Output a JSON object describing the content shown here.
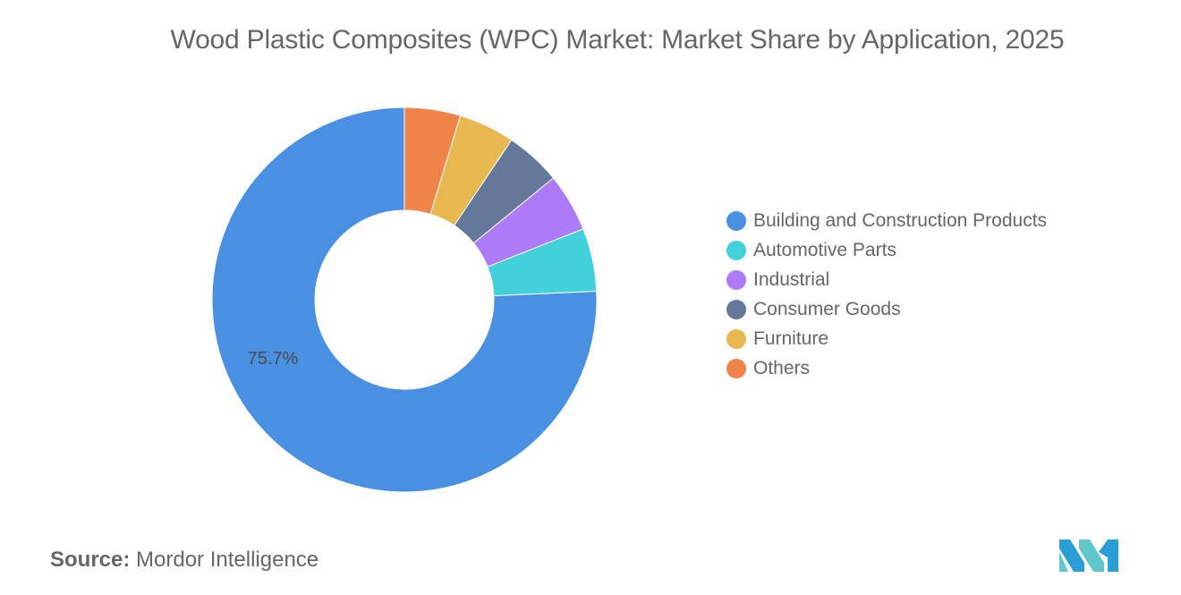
{
  "title": "Wood Plastic Composites (WPC) Market: Market Share by Application, 2025",
  "source": {
    "label": "Source:",
    "value": "Mordor Intelligence"
  },
  "colors": {
    "text": "#666666",
    "background": "#ffffff",
    "logo_primary": "#2a9fd6",
    "logo_secondary": "#5fc6c9"
  },
  "chart_data": {
    "type": "pie",
    "style": "donut",
    "title": "Wood Plastic Composites (WPC) Market: Market Share by Application, 2025",
    "legend_position": "right",
    "start_angle": "top, clockwise from Others",
    "slices": [
      {
        "name": "Others",
        "value": 4.7,
        "color": "#f0834a"
      },
      {
        "name": "Furniture",
        "value": 4.7,
        "color": "#e8b74f"
      },
      {
        "name": "Consumer Goods",
        "value": 4.7,
        "color": "#64789a"
      },
      {
        "name": "Industrial",
        "value": 4.9,
        "color": "#ad7bf7"
      },
      {
        "name": "Automotive Parts",
        "value": 5.3,
        "color": "#40d1db"
      },
      {
        "name": "Building and Construction Products",
        "value": 75.7,
        "color": "#4a90e2",
        "label": "75.7%"
      }
    ],
    "legend": [
      {
        "name": "Building and Construction Products",
        "color": "#4a90e2"
      },
      {
        "name": "Automotive Parts",
        "color": "#40d1db"
      },
      {
        "name": "Industrial",
        "color": "#ad7bf7"
      },
      {
        "name": "Consumer Goods",
        "color": "#64789a"
      },
      {
        "name": "Furniture",
        "color": "#e8b74f"
      },
      {
        "name": "Others",
        "color": "#f0834a"
      }
    ]
  }
}
